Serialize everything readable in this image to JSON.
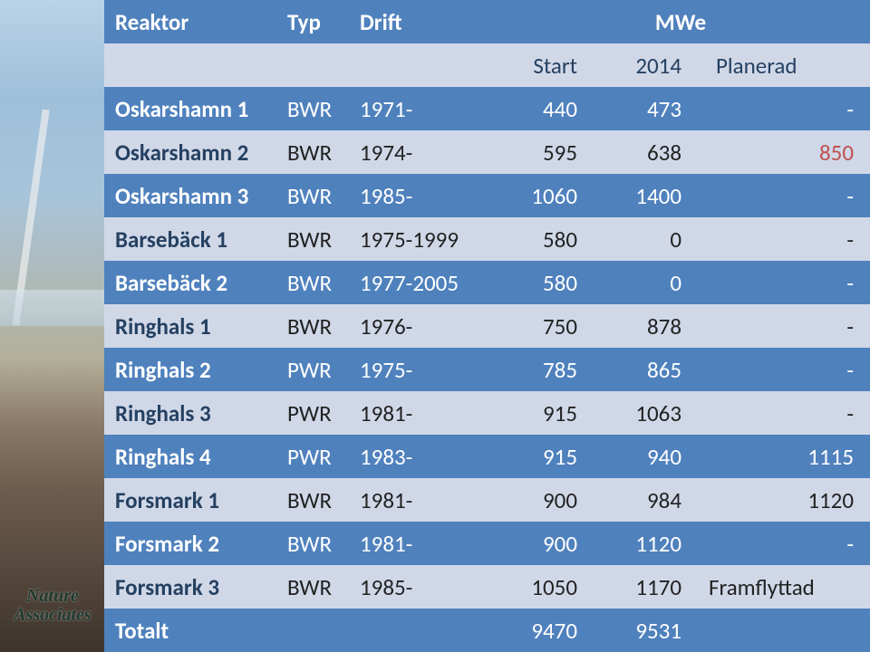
{
  "logo_line1": "Nature",
  "logo_line2": "Associates",
  "table": {
    "header": {
      "reaktor": "Reaktor",
      "typ": "Typ",
      "drift": "Drift",
      "mwe": "MWe"
    },
    "subheader": {
      "start": "Start",
      "y2014": "2014",
      "planerad": "Planerad"
    },
    "colors": {
      "header_bg": "#4f81bd",
      "header_fg": "#ffffff",
      "alt_bg": "#d0d8e8",
      "alt_fg": "#254061",
      "highlight": "#c0504d"
    },
    "rows": [
      {
        "reaktor": "Oskarshamn 1",
        "typ": "BWR",
        "drift": "1971-",
        "start": "440",
        "y2014": "473",
        "plan": "-",
        "hl": false
      },
      {
        "reaktor": "Oskarshamn 2",
        "typ": "BWR",
        "drift": "1974-",
        "start": "595",
        "y2014": "638",
        "plan": "850",
        "hl": true
      },
      {
        "reaktor": "Oskarshamn 3",
        "typ": "BWR",
        "drift": "1985-",
        "start": "1060",
        "y2014": "1400",
        "plan": "-",
        "hl": false
      },
      {
        "reaktor": "Barsebäck 1",
        "typ": "BWR",
        "drift": "1975-1999",
        "start": "580",
        "y2014": "0",
        "plan": "-",
        "hl": false
      },
      {
        "reaktor": "Barsebäck 2",
        "typ": "BWR",
        "drift": "1977-2005",
        "start": "580",
        "y2014": "0",
        "plan": "-",
        "hl": false
      },
      {
        "reaktor": "Ringhals 1",
        "typ": "BWR",
        "drift": "1976-",
        "start": "750",
        "y2014": "878",
        "plan": "-",
        "hl": false
      },
      {
        "reaktor": "Ringhals 2",
        "typ": "PWR",
        "drift": "1975-",
        "start": "785",
        "y2014": "865",
        "plan": "-",
        "hl": false
      },
      {
        "reaktor": "Ringhals 3",
        "typ": "PWR",
        "drift": "1981-",
        "start": "915",
        "y2014": "1063",
        "plan": "-",
        "hl": false
      },
      {
        "reaktor": "Ringhals 4",
        "typ": "PWR",
        "drift": "1983-",
        "start": "915",
        "y2014": "940",
        "plan": "1115",
        "hl": false
      },
      {
        "reaktor": "Forsmark 1",
        "typ": "BWR",
        "drift": "1981-",
        "start": "900",
        "y2014": "984",
        "plan": "1120",
        "hl": false
      },
      {
        "reaktor": "Forsmark 2",
        "typ": "BWR",
        "drift": "1981-",
        "start": "900",
        "y2014": "1120",
        "plan": "-",
        "hl": false
      },
      {
        "reaktor": "Forsmark 3",
        "typ": "BWR",
        "drift": "1985-",
        "start": "1050",
        "y2014": "1170",
        "plan": "Framflyttad",
        "hl": false
      }
    ],
    "total": {
      "label": "Totalt",
      "start": "9470",
      "y2014": "9531"
    }
  }
}
